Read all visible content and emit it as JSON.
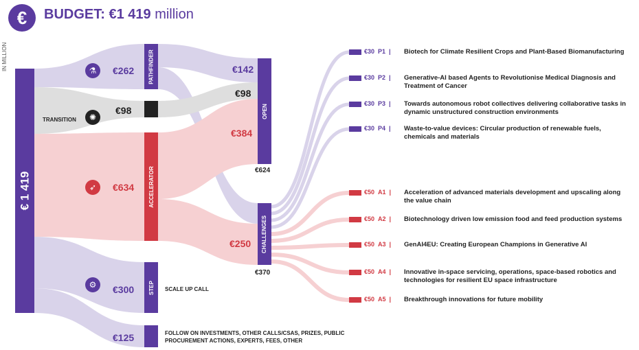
{
  "header": {
    "logo_symbol": "€",
    "title_label": "BUDGET:",
    "title_amount": "€1 419",
    "title_unit": "million"
  },
  "unit_label": "IN MILLION",
  "total": {
    "label": "€ 1 419",
    "value": 1419
  },
  "sources": {
    "pathfinder": {
      "amount": "€262",
      "icon": "flask-icon"
    },
    "transition": {
      "label": "TRANSITION",
      "amount": "€98",
      "icon": "atom-icon"
    },
    "accelerator": {
      "amount": "€634",
      "icon": "rocket-icon"
    },
    "step": {
      "amount": "€300",
      "icon": "gear-icon",
      "note": "SCALE UP CALL"
    },
    "other": {
      "amount": "€125",
      "note": "FOLLOW ON INVESTMENTS, OTHER CALLS/CSAS, PRIZES, PUBLIC PROCUREMENT ACTIONS, EXPERTS, FEES, OTHER"
    }
  },
  "bars": {
    "pathfinder": "PATHFINDER",
    "accelerator": "ACCELERATOR",
    "step": "STEP",
    "open": "OPEN",
    "challenges": "CHALLENGES"
  },
  "open": {
    "total": "€624",
    "from_pathfinder": "€142",
    "from_transition": "€98",
    "from_accelerator": "€384"
  },
  "challenges": {
    "total": "€370",
    "from_accelerator": "€250"
  },
  "projects": [
    {
      "amount": "€30",
      "code": "P1",
      "desc": "Biotech for Climate Resilient Crops and Plant-Based Biomanufacturing",
      "group": "pathfinder"
    },
    {
      "amount": "€30",
      "code": "P2",
      "desc": "Generative-AI based Agents to Revolutionise Medical Diagnosis and Treatment of Cancer",
      "group": "pathfinder"
    },
    {
      "amount": "€30",
      "code": "P3",
      "desc": "Towards autonomous robot collectives delivering collaborative tasks in dynamic unstructured construction environments",
      "group": "pathfinder"
    },
    {
      "amount": "€30",
      "code": "P4",
      "desc": "Waste-to-value devices: Circular production of renewable fuels, chemicals and materials",
      "group": "pathfinder"
    },
    {
      "amount": "€50",
      "code": "A1",
      "desc": "Acceleration of advanced materials development and upscaling along the value chain",
      "group": "accelerator"
    },
    {
      "amount": "€50",
      "code": "A2",
      "desc": "Biotechnology driven low emission food and feed production systems",
      "group": "accelerator"
    },
    {
      "amount": "€50",
      "code": "A3",
      "desc": "GenAI4EU: Creating European Champions in Generative AI",
      "group": "accelerator"
    },
    {
      "amount": "€50",
      "code": "A4",
      "desc": "Innovative in-space servicing, operations, space-based robotics and technologies for resilient EU space infrastructure",
      "group": "accelerator"
    },
    {
      "amount": "€50",
      "code": "A5",
      "desc": "Breakthrough innovations for future mobility",
      "group": "accelerator"
    }
  ],
  "colors": {
    "purple": "#5a3b9f",
    "purple_flow": "#d9d3ea",
    "red": "#d13a43",
    "red_flow": "#f6d0d2",
    "grey_flow": "#dedede",
    "black": "#222222"
  },
  "chart_data": {
    "type": "sankey",
    "title": "BUDGET: €1 419 million",
    "unit": "IN MILLION",
    "nodes": [
      "Total",
      "Pathfinder",
      "Transition",
      "Accelerator",
      "Step",
      "Other",
      "Open",
      "Challenges",
      "P1",
      "P2",
      "P3",
      "P4",
      "A1",
      "A2",
      "A3",
      "A4",
      "A5"
    ],
    "links": [
      {
        "source": "Total",
        "target": "Pathfinder",
        "value": 262
      },
      {
        "source": "Total",
        "target": "Transition",
        "value": 98
      },
      {
        "source": "Total",
        "target": "Accelerator",
        "value": 634
      },
      {
        "source": "Total",
        "target": "Step",
        "value": 300
      },
      {
        "source": "Total",
        "target": "Other",
        "value": 125
      },
      {
        "source": "Pathfinder",
        "target": "Open",
        "value": 142
      },
      {
        "source": "Transition",
        "target": "Open",
        "value": 98
      },
      {
        "source": "Accelerator",
        "target": "Open",
        "value": 384
      },
      {
        "source": "Pathfinder",
        "target": "Challenges",
        "value": 120
      },
      {
        "source": "Accelerator",
        "target": "Challenges",
        "value": 250
      },
      {
        "source": "Challenges",
        "target": "P1",
        "value": 30
      },
      {
        "source": "Challenges",
        "target": "P2",
        "value": 30
      },
      {
        "source": "Challenges",
        "target": "P3",
        "value": 30
      },
      {
        "source": "Challenges",
        "target": "P4",
        "value": 30
      },
      {
        "source": "Challenges",
        "target": "A1",
        "value": 50
      },
      {
        "source": "Challenges",
        "target": "A2",
        "value": 50
      },
      {
        "source": "Challenges",
        "target": "A3",
        "value": 50
      },
      {
        "source": "Challenges",
        "target": "A4",
        "value": 50
      },
      {
        "source": "Challenges",
        "target": "A5",
        "value": 50
      }
    ],
    "totals": {
      "Open": 624,
      "Challenges": 370
    }
  }
}
